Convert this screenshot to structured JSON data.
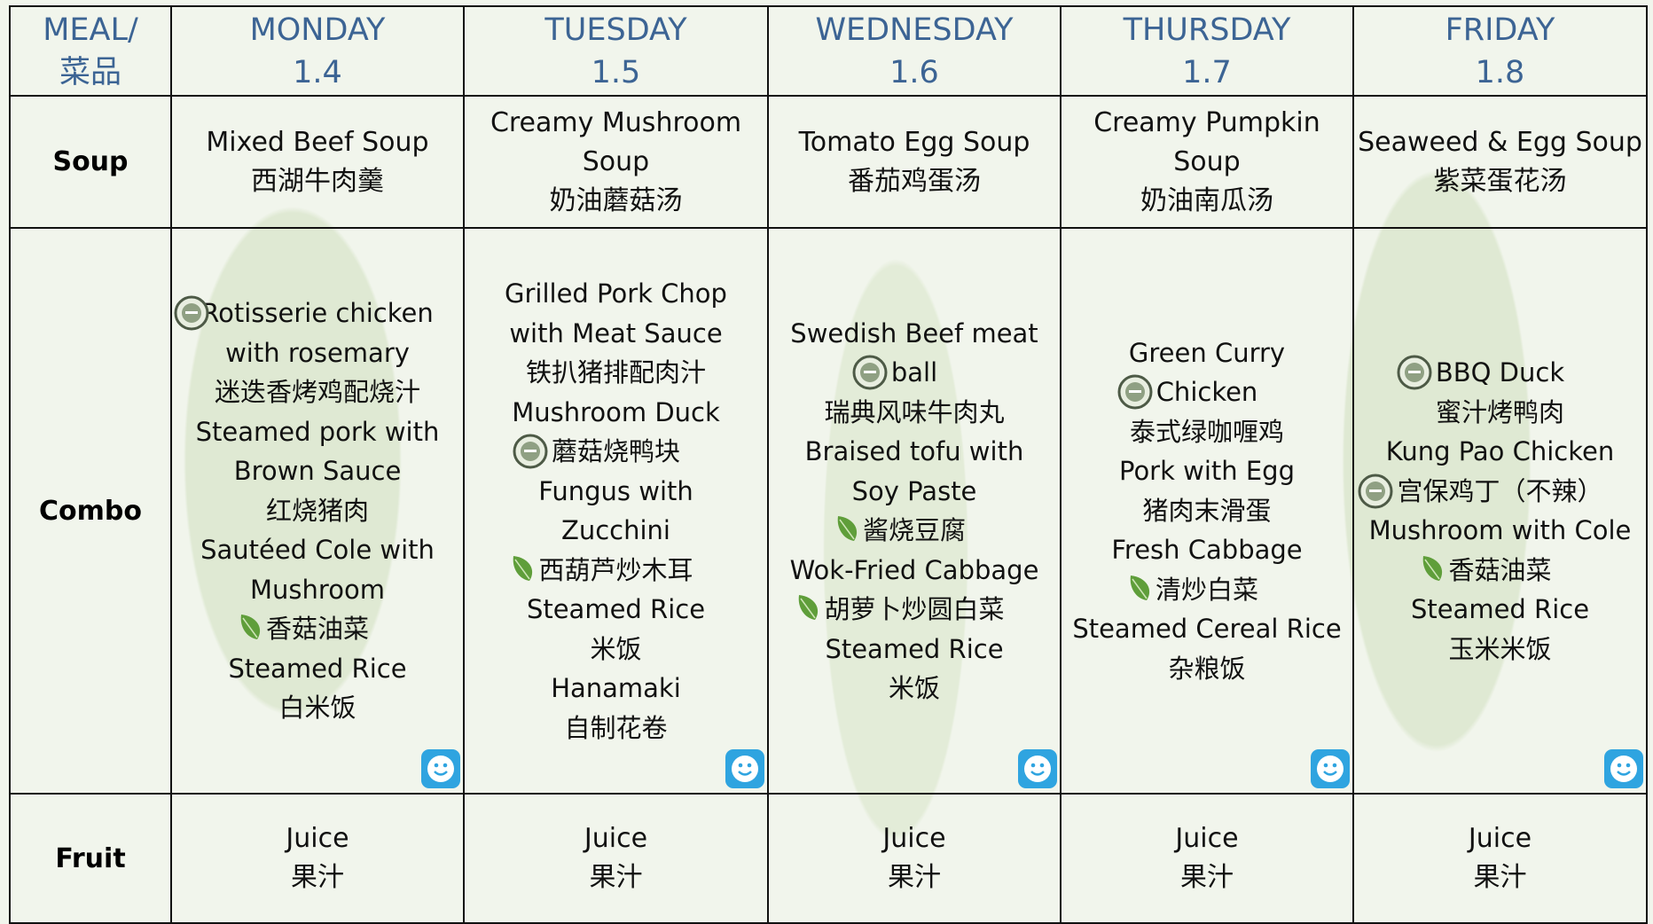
{
  "header": {
    "cells": [
      [
        "MEAL/",
        "菜品"
      ],
      [
        "MONDAY",
        "1.4"
      ],
      [
        "TUESDAY",
        "1.5"
      ],
      [
        "WEDNESDAY",
        "1.6"
      ],
      [
        "THURSDAY",
        "1.7"
      ],
      [
        "FRIDAY",
        "1.8"
      ]
    ]
  },
  "rows": [
    {
      "label": "Soup",
      "cells": [
        [
          "Mixed Beef Soup",
          "西湖牛肉羹"
        ],
        [
          "Creamy Mushroom",
          "Soup",
          "奶油蘑菇汤"
        ],
        [
          "Tomato Egg Soup",
          "番茄鸡蛋汤"
        ],
        [
          "Creamy Pumpkin",
          "Soup",
          "奶油南瓜汤"
        ],
        [
          "Seaweed & Egg Soup",
          "紫菜蛋花汤"
        ]
      ]
    },
    {
      "label": "Combo",
      "cells": [
        [
          "Rotisserie chicken",
          "with rosemary",
          "迷迭香烤鸡配烧汁",
          "Steamed pork with",
          "Brown Sauce",
          "红烧猪肉",
          "Sautéed Cole with",
          "Mushroom",
          "香菇油菜",
          "Steamed Rice",
          "白米饭"
        ],
        [
          "Grilled Pork Chop",
          "with Meat Sauce",
          "铁扒猪排配肉汁",
          "Mushroom Duck",
          "蘑菇烧鸭块",
          "Fungus with",
          "Zucchini",
          "西葫芦炒木耳",
          "Steamed Rice",
          "米饭",
          "Hanamaki",
          "自制花卷"
        ],
        [
          "Swedish Beef meat",
          "ball",
          "瑞典风味牛肉丸",
          "Braised tofu with",
          "Soy Paste",
          "酱烧豆腐",
          "Wok-Fried Cabbage",
          "胡萝卜炒圆白菜",
          "Steamed Rice",
          "米饭"
        ],
        [
          "Green Curry",
          "Chicken",
          "泰式绿咖喱鸡",
          "Pork with Egg",
          "猪肉末滑蛋",
          "Fresh Cabbage",
          "清炒白菜",
          "Steamed Cereal Rice",
          "杂粮饭"
        ],
        [
          "BBQ Duck",
          "蜜汁烤鸭肉",
          "Kung Pao Chicken",
          "宫保鸡丁（不辣）",
          "Mushroom with Cole",
          "香菇油菜",
          "Steamed Rice",
          "玉米米饭"
        ]
      ]
    },
    {
      "label": "Fruit",
      "cells": [
        [
          "Juice",
          "果汁"
        ],
        [
          "Juice",
          "果汁"
        ],
        [
          "Juice",
          "果汁"
        ],
        [
          "Juice",
          "果汁"
        ],
        [
          "Juice",
          "果汁"
        ]
      ]
    }
  ]
}
